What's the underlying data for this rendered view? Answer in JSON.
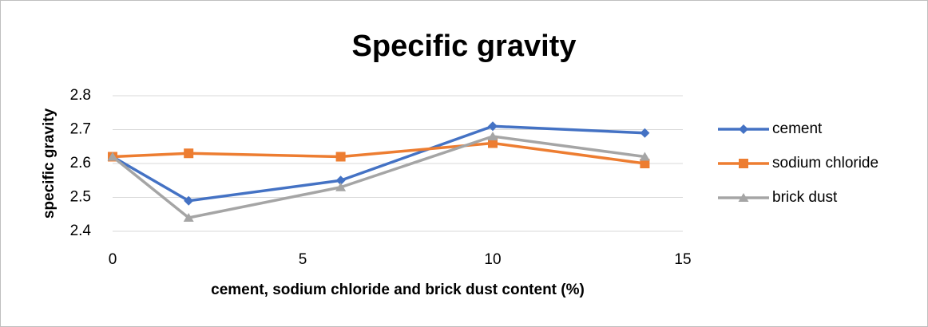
{
  "chart_data": {
    "type": "line",
    "title": "Specific gravity",
    "x_label": "cement, sodium chloride and brick dust content (%)",
    "y_label": "specific gravity",
    "x": [
      0,
      2,
      6,
      10,
      14
    ],
    "series": [
      {
        "name": "cement",
        "color": "#4472c4",
        "marker": "diamond",
        "values": [
          2.62,
          2.49,
          2.55,
          2.71,
          2.69
        ]
      },
      {
        "name": "sodium chloride",
        "color": "#ed7d31",
        "marker": "square",
        "values": [
          2.62,
          2.63,
          2.62,
          2.66,
          2.6
        ]
      },
      {
        "name": "brick dust",
        "color": "#a5a5a5",
        "marker": "triangle",
        "values": [
          2.62,
          2.44,
          2.53,
          2.68,
          2.62
        ]
      }
    ],
    "xlim": [
      0,
      15
    ],
    "xticks": [
      0,
      5,
      10,
      15
    ],
    "ylim": [
      2.4,
      2.8
    ],
    "yticks": [
      2.4,
      2.5,
      2.6,
      2.7,
      2.8
    ],
    "grid": true,
    "legend": "right"
  }
}
